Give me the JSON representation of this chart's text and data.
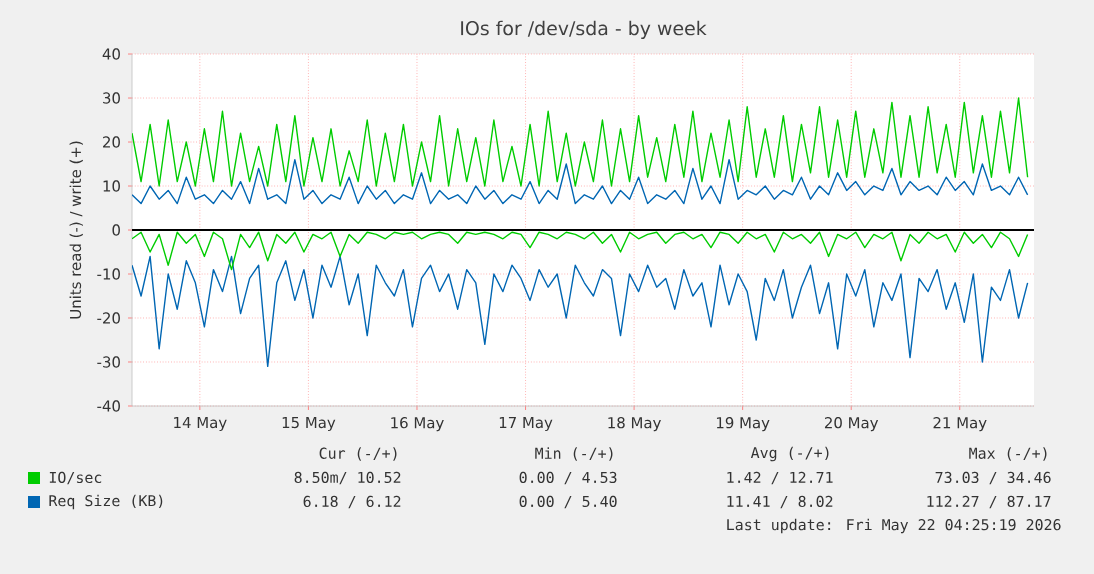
{
  "chart_data": {
    "type": "line",
    "title": "IOs for /dev/sda - by week",
    "ylabel": "Units read (-) / write (+)",
    "x": [
      "2026-05-13T21:00",
      "2026-05-13T23:00",
      "2026-05-14T01:00",
      "2026-05-14T03:00",
      "2026-05-14T05:00",
      "2026-05-14T07:00",
      "2026-05-14T09:00",
      "2026-05-14T11:00",
      "2026-05-14T13:00",
      "2026-05-14T15:00",
      "2026-05-14T17:00",
      "2026-05-14T19:00",
      "2026-05-14T21:00",
      "2026-05-14T23:00",
      "2026-05-15T01:00",
      "2026-05-15T03:00",
      "2026-05-15T05:00",
      "2026-05-15T07:00",
      "2026-05-15T09:00",
      "2026-05-15T11:00",
      "2026-05-15T13:00",
      "2026-05-15T15:00",
      "2026-05-15T17:00",
      "2026-05-15T19:00",
      "2026-05-15T21:00",
      "2026-05-15T23:00",
      "2026-05-16T01:00",
      "2026-05-16T03:00",
      "2026-05-16T05:00",
      "2026-05-16T07:00",
      "2026-05-16T09:00",
      "2026-05-16T11:00",
      "2026-05-16T13:00",
      "2026-05-16T15:00",
      "2026-05-16T17:00",
      "2026-05-16T19:00",
      "2026-05-16T21:00",
      "2026-05-16T23:00",
      "2026-05-17T01:00",
      "2026-05-17T03:00",
      "2026-05-17T05:00",
      "2026-05-17T07:00",
      "2026-05-17T09:00",
      "2026-05-17T11:00",
      "2026-05-17T13:00",
      "2026-05-17T15:00",
      "2026-05-17T17:00",
      "2026-05-17T19:00",
      "2026-05-17T21:00",
      "2026-05-17T23:00",
      "2026-05-18T01:00",
      "2026-05-18T03:00",
      "2026-05-18T05:00",
      "2026-05-18T07:00",
      "2026-05-18T09:00",
      "2026-05-18T11:00",
      "2026-05-18T13:00",
      "2026-05-18T15:00",
      "2026-05-18T17:00",
      "2026-05-18T19:00",
      "2026-05-18T21:00",
      "2026-05-18T23:00",
      "2026-05-19T01:00",
      "2026-05-19T03:00",
      "2026-05-19T05:00",
      "2026-05-19T07:00",
      "2026-05-19T09:00",
      "2026-05-19T11:00",
      "2026-05-19T13:00",
      "2026-05-19T15:00",
      "2026-05-19T17:00",
      "2026-05-19T19:00",
      "2026-05-19T21:00",
      "2026-05-19T23:00",
      "2026-05-20T01:00",
      "2026-05-20T03:00",
      "2026-05-20T05:00",
      "2026-05-20T07:00",
      "2026-05-20T09:00",
      "2026-05-20T11:00",
      "2026-05-20T13:00",
      "2026-05-20T15:00",
      "2026-05-20T17:00",
      "2026-05-20T19:00",
      "2026-05-20T21:00",
      "2026-05-20T23:00",
      "2026-05-21T01:00",
      "2026-05-21T03:00",
      "2026-05-21T05:00",
      "2026-05-21T07:00",
      "2026-05-21T09:00",
      "2026-05-21T11:00",
      "2026-05-21T13:00",
      "2026-05-21T15:00",
      "2026-05-21T17:00",
      "2026-05-21T19:00",
      "2026-05-21T21:00",
      "2026-05-21T23:00",
      "2026-05-22T01:00",
      "2026-05-22T03:00"
    ],
    "series": [
      {
        "name": "IO/sec",
        "color": "#00cc00",
        "values": [
          22,
          11,
          24,
          10,
          25,
          11,
          20,
          10,
          23,
          11,
          27,
          10,
          22,
          11,
          19,
          10,
          24,
          11,
          26,
          10,
          21,
          11,
          23,
          10,
          18,
          11,
          25,
          10,
          22,
          11,
          24,
          10,
          20,
          11,
          26,
          10,
          23,
          11,
          21,
          10,
          25,
          11,
          19,
          10,
          24,
          10,
          27,
          11,
          22,
          10,
          20,
          11,
          25,
          10,
          23,
          11,
          26,
          12,
          21,
          11,
          24,
          12,
          27,
          11,
          22,
          12,
          25,
          11,
          28,
          12,
          23,
          12,
          26,
          11,
          24,
          13,
          28,
          12,
          25,
          12,
          27,
          12,
          23,
          13,
          29,
          12,
          26,
          12,
          28,
          13,
          24,
          12,
          29,
          13,
          26,
          12,
          27,
          13,
          30,
          12
        ]
      },
      {
        "name": "Req Size (KB)",
        "color": "#0066b3",
        "values": [
          8,
          6,
          10,
          7,
          9,
          6,
          12,
          7,
          8,
          6,
          9,
          7,
          11,
          6,
          14,
          7,
          8,
          6,
          16,
          7,
          9,
          6,
          8,
          7,
          12,
          6,
          10,
          7,
          9,
          6,
          8,
          7,
          13,
          6,
          9,
          7,
          8,
          6,
          10,
          7,
          9,
          6,
          8,
          7,
          11,
          6,
          9,
          7,
          15,
          6,
          8,
          7,
          10,
          6,
          9,
          7,
          12,
          6,
          8,
          7,
          9,
          6,
          14,
          7,
          10,
          6,
          16,
          7,
          9,
          8,
          10,
          7,
          9,
          8,
          12,
          7,
          10,
          8,
          13,
          9,
          11,
          8,
          10,
          9,
          14,
          8,
          11,
          9,
          10,
          8,
          12,
          9,
          11,
          8,
          15,
          9,
          10,
          8,
          12,
          8
        ]
      },
      {
        "color": "#0066b3",
        "values": [
          -8,
          -15,
          -6,
          -27,
          -10,
          -18,
          -7,
          -12,
          -22,
          -9,
          -14,
          -6,
          -19,
          -11,
          -8,
          -31,
          -12,
          -7,
          -16,
          -9,
          -20,
          -8,
          -13,
          -6,
          -17,
          -10,
          -24,
          -8,
          -12,
          -15,
          -9,
          -22,
          -11,
          -8,
          -14,
          -10,
          -18,
          -9,
          -12,
          -26,
          -10,
          -14,
          -8,
          -11,
          -16,
          -9,
          -13,
          -10,
          -20,
          -8,
          -12,
          -15,
          -9,
          -11,
          -24,
          -10,
          -14,
          -8,
          -13,
          -11,
          -18,
          -9,
          -15,
          -12,
          -22,
          -8,
          -17,
          -10,
          -14,
          -25,
          -11,
          -16,
          -9,
          -20,
          -13,
          -8,
          -19,
          -12,
          -27,
          -10,
          -15,
          -9,
          -22,
          -12,
          -16,
          -10,
          -29,
          -11,
          -14,
          -9,
          -18,
          -12,
          -21,
          -10,
          -30,
          -13,
          -16,
          -9,
          -20,
          -12
        ]
      },
      {
        "color": "#00cc00",
        "values": [
          -2,
          -0.5,
          -5,
          -1,
          -8,
          -0.5,
          -3,
          -1,
          -6,
          -0.5,
          -2,
          -9,
          -1,
          -4,
          -0.5,
          -7,
          -1,
          -3,
          -0.5,
          -5,
          -1,
          -2,
          -0.5,
          -6,
          -1,
          -3,
          -0.5,
          -1,
          -2,
          -0.5,
          -1,
          -0.5,
          -2,
          -1,
          -0.5,
          -1,
          -3,
          -0.5,
          -1,
          -0.5,
          -1,
          -2,
          -0.5,
          -1,
          -4,
          -0.5,
          -1,
          -2,
          -0.5,
          -1,
          -2,
          -0.5,
          -3,
          -1,
          -5,
          -0.5,
          -2,
          -1,
          -0.5,
          -3,
          -1,
          -0.5,
          -2,
          -1,
          -4,
          -0.5,
          -1,
          -3,
          -0.5,
          -2,
          -1,
          -5,
          -0.5,
          -2,
          -1,
          -3,
          -0.5,
          -6,
          -1,
          -2,
          -0.5,
          -4,
          -1,
          -2,
          -0.5,
          -7,
          -1,
          -3,
          -0.5,
          -2,
          -1,
          -5,
          -0.5,
          -3,
          -1,
          -4,
          -0.5,
          -2,
          -6,
          -1
        ]
      }
    ],
    "xlim": [
      "2026-05-13T21:00",
      "2026-05-22T04:25"
    ],
    "xticks": [
      {
        "value": "2026-05-14T12:00",
        "label": "14 May"
      },
      {
        "value": "2026-05-15T12:00",
        "label": "15 May"
      },
      {
        "value": "2026-05-16T12:00",
        "label": "16 May"
      },
      {
        "value": "2026-05-17T12:00",
        "label": "17 May"
      },
      {
        "value": "2026-05-18T12:00",
        "label": "18 May"
      },
      {
        "value": "2026-05-19T12:00",
        "label": "19 May"
      },
      {
        "value": "2026-05-20T12:00",
        "label": "20 May"
      },
      {
        "value": "2026-05-21T12:00",
        "label": "21 May"
      }
    ],
    "ylim": [
      -40,
      40
    ],
    "yticks": [
      -40,
      -30,
      -20,
      -10,
      0,
      10,
      20,
      30,
      40
    ],
    "grid": true,
    "legend": "bottom",
    "ref_lines": [
      {
        "axis": "y",
        "value": 0,
        "color": "#000000"
      }
    ],
    "annotations": [
      "Cur (-/+)",
      "Min (-/+)",
      "Avg (-/+)",
      "Max (-/+)",
      "8.50m/ 10.52",
      "0.00 /  4.53",
      "1.42 / 12.71",
      "73.03 / 34.46",
      "6.18 /  6.12",
      "0.00 /  5.40",
      "11.41 /  8.02",
      "112.27 / 87.17",
      "Last update: Fri May 22 04:25:19 2026"
    ]
  }
}
